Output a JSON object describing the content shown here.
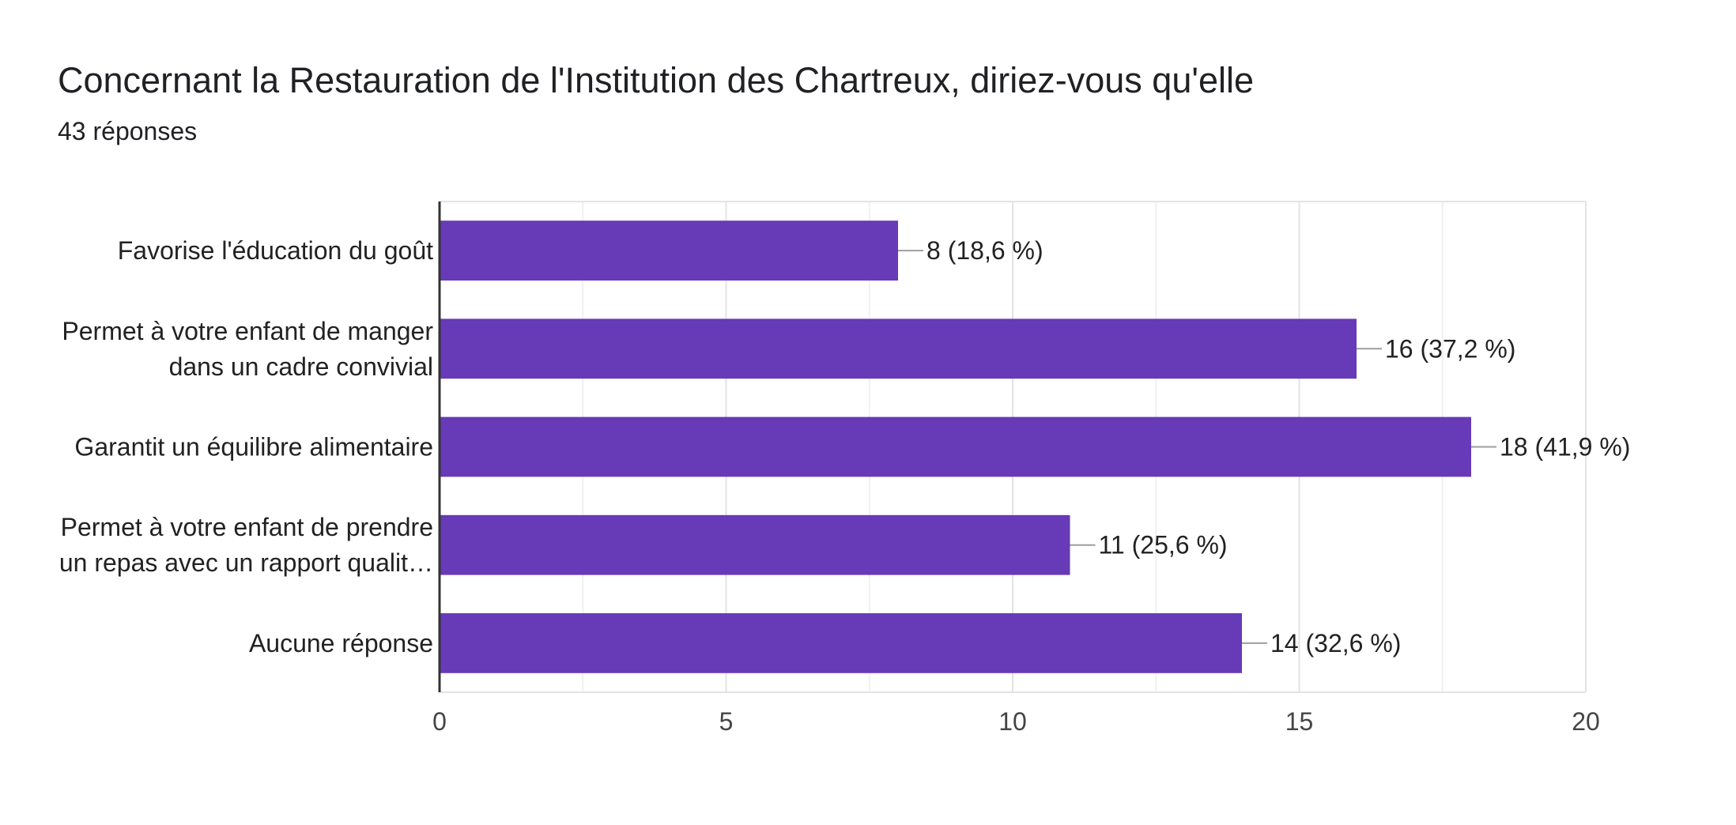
{
  "header": {
    "title": "Concernant la Restauration de l'Institution des Chartreux, diriez-vous qu'elle",
    "responses": "43 réponses"
  },
  "chart_data": {
    "type": "bar",
    "orientation": "horizontal",
    "categories": [
      [
        "Favorise l'éducation du goût"
      ],
      [
        "Permet à votre enfant de manger",
        "dans un cadre convivial"
      ],
      [
        "Garantit un équilibre alimentaire"
      ],
      [
        "Permet à votre enfant de prendre",
        "un repas avec un rapport qualit…"
      ],
      [
        "Aucune réponse"
      ]
    ],
    "values": [
      8,
      16,
      18,
      11,
      14
    ],
    "value_labels": [
      "8 (18,6 %)",
      "16 (37,2 %)",
      "18 (41,9 %)",
      "11 (25,6 %)",
      "14 (32,6 %)"
    ],
    "xlim": [
      0,
      20
    ],
    "xticks": [
      0,
      5,
      10,
      15,
      20
    ],
    "grid": true,
    "bar_color": "#673ab7"
  }
}
